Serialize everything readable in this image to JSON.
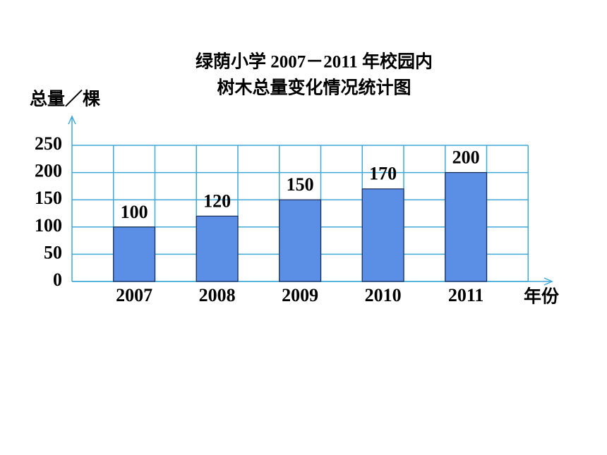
{
  "chart_data": {
    "type": "bar",
    "title": "绿荫小学 2007－2011 年校园内",
    "subtitle": "树木总量变化情况统计图",
    "y_label": "总量／棵",
    "x_label": "年份",
    "categories": [
      "2007",
      "2008",
      "2009",
      "2010",
      "2011"
    ],
    "values": [
      100,
      120,
      150,
      170,
      200
    ],
    "color": "#5b8fe6",
    "ylim": [
      0,
      250
    ],
    "yticks": [
      0,
      50,
      100,
      150,
      200,
      250
    ],
    "grid": true
  }
}
